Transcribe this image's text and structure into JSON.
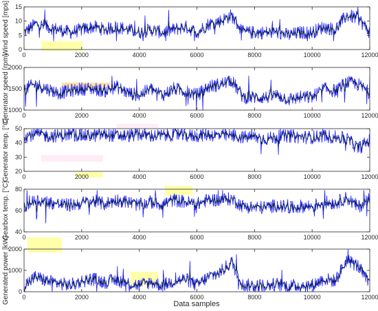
{
  "chart_data": {
    "type": "line",
    "xlabel": "Data samples",
    "x_range": [
      0,
      12000
    ],
    "x_ticks": [
      "0",
      "2000",
      "4000",
      "6000",
      "8000",
      "10000",
      "12000"
    ],
    "colors": {
      "measured": "#1a1aff",
      "smoothed": "#0b2447",
      "axis": "#262626"
    },
    "panels": [
      {
        "ylabel": "Wind speed [mps]",
        "ylim": [
          0,
          15
        ],
        "y_ticks": [
          "0",
          "5",
          "10",
          "15"
        ],
        "x": [
          0,
          400,
          800,
          1200,
          1600,
          2000,
          2400,
          2800,
          3200,
          3600,
          4000,
          4400,
          4800,
          5200,
          5600,
          6000,
          6400,
          6800,
          7200,
          7600,
          8000,
          8400,
          8800,
          9200,
          9600,
          10000,
          10400,
          10800,
          11200,
          11600,
          12000
        ],
        "values": [
          6,
          9,
          8,
          7,
          6,
          7,
          8,
          7,
          8,
          7,
          6,
          7,
          6,
          7,
          8,
          6,
          9,
          10,
          12,
          6,
          6,
          6,
          6,
          5,
          6,
          6,
          8,
          7,
          12,
          11,
          6
        ],
        "max": 15,
        "min": 3
      },
      {
        "ylabel": "Generator speed [rpm]",
        "ylim": [
          1000,
          2000
        ],
        "y_ticks": [
          "1000",
          "1500",
          "2000"
        ],
        "x": [
          0,
          400,
          800,
          1200,
          1600,
          2000,
          2400,
          2800,
          3200,
          3600,
          4000,
          4400,
          4800,
          5200,
          5600,
          6000,
          6400,
          6800,
          7200,
          7600,
          8000,
          8400,
          8800,
          9200,
          9600,
          10000,
          10400,
          10800,
          11200,
          11600,
          12000
        ],
        "values": [
          1500,
          1600,
          1500,
          1400,
          1450,
          1500,
          1500,
          1450,
          1550,
          1400,
          1350,
          1500,
          1350,
          1500,
          1450,
          1350,
          1550,
          1600,
          1700,
          1300,
          1300,
          1300,
          1350,
          1250,
          1300,
          1300,
          1500,
          1450,
          1650,
          1600,
          1400
        ],
        "max": 1800,
        "min": 1000
      },
      {
        "ylabel": "Generator temp. [°C]",
        "ylim": [
          20,
          50
        ],
        "y_ticks": [
          "20",
          "30",
          "40",
          "50"
        ],
        "x": [
          0,
          400,
          800,
          1200,
          1600,
          2000,
          2400,
          2800,
          3200,
          3600,
          4000,
          4400,
          4800,
          5200,
          5600,
          6000,
          6400,
          6800,
          7200,
          7600,
          8000,
          8400,
          8800,
          9200,
          9600,
          10000,
          10400,
          10800,
          11200,
          11600,
          12000
        ],
        "values": [
          45,
          46,
          45,
          45,
          46,
          45,
          45,
          46,
          45,
          45,
          46,
          45,
          45,
          46,
          45,
          45,
          46,
          45,
          45,
          44,
          44,
          43,
          44,
          45,
          44,
          44,
          45,
          44,
          43,
          36,
          42
        ],
        "max": 50,
        "min": 22
      },
      {
        "ylabel": "Gearbox temp. [°C]",
        "ylim": [
          40,
          80
        ],
        "y_ticks": [
          "40",
          "60",
          "80"
        ],
        "x": [
          0,
          400,
          800,
          1200,
          1600,
          2000,
          2400,
          2800,
          3200,
          3600,
          4000,
          4400,
          4800,
          5200,
          5600,
          6000,
          6400,
          6800,
          7200,
          7600,
          8000,
          8400,
          8800,
          9200,
          9600,
          10000,
          10400,
          10800,
          11200,
          11600,
          12000
        ],
        "values": [
          62,
          70,
          68,
          66,
          65,
          67,
          69,
          66,
          70,
          68,
          65,
          68,
          66,
          70,
          68,
          66,
          70,
          70,
          71,
          64,
          63,
          63,
          65,
          62,
          64,
          64,
          68,
          67,
          72,
          63,
          72
        ],
        "max": 79,
        "min": 46
      },
      {
        "ylabel": "Generated power [kW]",
        "ylim": [
          0,
          2000
        ],
        "y_ticks": [
          "0",
          "1000",
          "2000"
        ],
        "x": [
          0,
          400,
          800,
          1200,
          1600,
          2000,
          2400,
          2800,
          3200,
          3600,
          4000,
          4400,
          4800,
          5200,
          5600,
          6000,
          6400,
          6800,
          7200,
          7600,
          8000,
          8400,
          8800,
          9200,
          9600,
          10000,
          10400,
          10800,
          11200,
          11600,
          12000
        ],
        "values": [
          300,
          700,
          500,
          400,
          300,
          500,
          600,
          450,
          550,
          400,
          300,
          450,
          300,
          500,
          600,
          300,
          700,
          900,
          1400,
          300,
          300,
          300,
          350,
          250,
          300,
          300,
          600,
          500,
          1500,
          1200,
          300
        ],
        "max": 2000,
        "min": 0
      }
    ]
  }
}
